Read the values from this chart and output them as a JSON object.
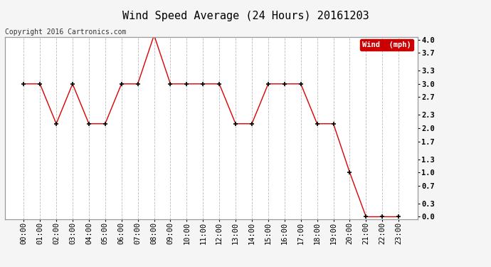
{
  "title": "Wind Speed Average (24 Hours) 20161203",
  "copyright_text": "Copyright 2016 Cartronics.com",
  "x_labels": [
    "00:00",
    "01:00",
    "02:00",
    "03:00",
    "04:00",
    "05:00",
    "06:00",
    "07:00",
    "08:00",
    "09:00",
    "10:00",
    "11:00",
    "12:00",
    "13:00",
    "14:00",
    "15:00",
    "16:00",
    "17:00",
    "18:00",
    "19:00",
    "20:00",
    "21:00",
    "22:00",
    "23:00"
  ],
  "y_values": [
    3.0,
    3.0,
    2.1,
    3.0,
    2.1,
    2.1,
    3.0,
    3.0,
    4.1,
    3.0,
    3.0,
    3.0,
    3.0,
    2.1,
    2.1,
    3.0,
    3.0,
    3.0,
    2.1,
    2.1,
    1.0,
    0.0,
    0.0,
    0.0
  ],
  "line_color": "#dd0000",
  "marker_color": "#000000",
  "legend_label": "Wind  (mph)",
  "legend_bg": "#cc0000",
  "legend_text_color": "#ffffff",
  "y_ticks": [
    0.0,
    0.3,
    0.7,
    1.0,
    1.3,
    1.7,
    2.0,
    2.3,
    2.7,
    3.0,
    3.3,
    3.7,
    4.0
  ],
  "ylim": [
    0.0,
    4.0
  ],
  "bg_color": "#f5f5f5",
  "plot_bg": "#ffffff",
  "grid_color": "#bbbbbb",
  "title_fontsize": 11,
  "copyright_fontsize": 7,
  "tick_fontsize": 7.5
}
